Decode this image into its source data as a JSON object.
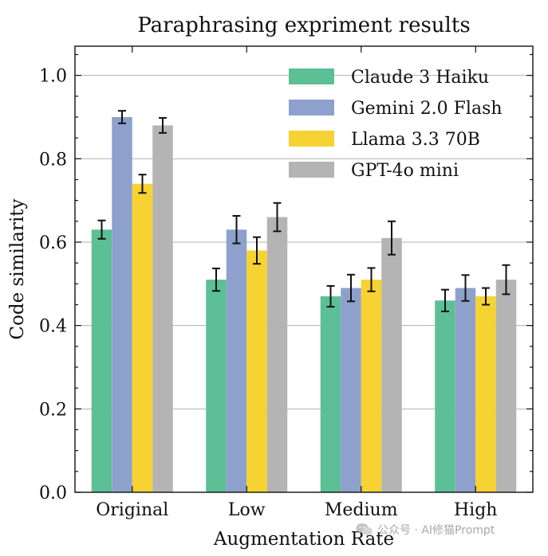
{
  "chart_data": {
    "type": "bar",
    "title": "Paraphrasing expriment results",
    "xlabel": "Augmentation Rate",
    "ylabel": "Code similarity",
    "categories": [
      "Original",
      "Low",
      "Medium",
      "High"
    ],
    "ylim": [
      0,
      1.07
    ],
    "yticks": [
      0.0,
      0.2,
      0.4,
      0.6,
      0.8,
      1.0
    ],
    "ytick_labels": [
      "0.0",
      "0.2",
      "0.4",
      "0.6",
      "0.8",
      "1.0"
    ],
    "grid": "horizontal",
    "legend_position": "top-right",
    "series": [
      {
        "name": "Claude 3 Haiku",
        "color": "#5dbf95",
        "values": [
          0.63,
          0.51,
          0.47,
          0.46
        ],
        "errors": [
          0.022,
          0.027,
          0.025,
          0.026
        ]
      },
      {
        "name": "Gemini 2.0 Flash",
        "color": "#8ea1cc",
        "values": [
          0.9,
          0.63,
          0.49,
          0.49
        ],
        "errors": [
          0.015,
          0.033,
          0.032,
          0.031
        ]
      },
      {
        "name": "Llama 3.3 70B",
        "color": "#f6d232",
        "values": [
          0.74,
          0.58,
          0.51,
          0.47
        ],
        "errors": [
          0.022,
          0.032,
          0.028,
          0.02
        ]
      },
      {
        "name": "GPT-4o mini",
        "color": "#b4b4b4",
        "values": [
          0.88,
          0.66,
          0.61,
          0.51
        ],
        "errors": [
          0.018,
          0.034,
          0.04,
          0.035
        ]
      }
    ]
  },
  "watermark": {
    "text": "公众号 · AI修猫Prompt",
    "icon": "wechat-icon"
  }
}
